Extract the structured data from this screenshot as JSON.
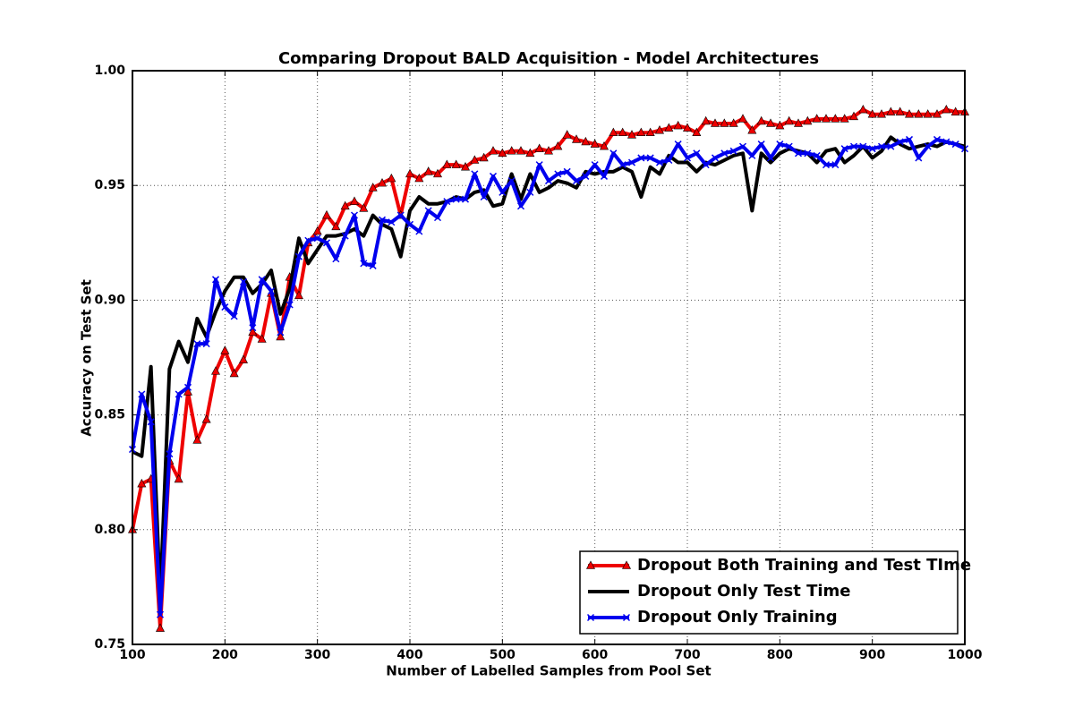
{
  "chart_data": {
    "type": "line",
    "title": "Comparing Dropout BALD Acquisition - Model Architectures",
    "xlabel": "Number of Labelled Samples from Pool Set",
    "ylabel": "Accuracy on Test Set",
    "x": [
      100,
      110,
      120,
      130,
      140,
      150,
      160,
      170,
      180,
      190,
      200,
      210,
      220,
      230,
      240,
      250,
      260,
      270,
      280,
      290,
      300,
      310,
      320,
      330,
      340,
      350,
      360,
      370,
      380,
      390,
      400,
      410,
      420,
      430,
      440,
      450,
      460,
      470,
      480,
      490,
      500,
      510,
      520,
      530,
      540,
      550,
      560,
      570,
      580,
      590,
      600,
      610,
      620,
      630,
      640,
      650,
      660,
      670,
      680,
      690,
      700,
      710,
      720,
      730,
      740,
      750,
      760,
      770,
      780,
      790,
      800,
      810,
      820,
      830,
      840,
      850,
      860,
      870,
      880,
      890,
      900,
      910,
      920,
      930,
      940,
      950,
      960,
      970,
      980,
      990,
      1000
    ],
    "series": [
      {
        "name": "Dropout Both Training and Test TIme",
        "color": "#ee0000",
        "marker": "triangle",
        "values": [
          0.8,
          0.82,
          0.822,
          0.757,
          0.83,
          0.822,
          0.86,
          0.839,
          0.848,
          0.869,
          0.878,
          0.868,
          0.874,
          0.886,
          0.883,
          0.903,
          0.884,
          0.91,
          0.902,
          0.925,
          0.93,
          0.937,
          0.932,
          0.941,
          0.943,
          0.94,
          0.949,
          0.951,
          0.953,
          0.937,
          0.955,
          0.953,
          0.956,
          0.955,
          0.959,
          0.959,
          0.958,
          0.961,
          0.962,
          0.965,
          0.964,
          0.965,
          0.965,
          0.964,
          0.966,
          0.965,
          0.967,
          0.972,
          0.97,
          0.969,
          0.968,
          0.967,
          0.973,
          0.973,
          0.972,
          0.973,
          0.973,
          0.974,
          0.975,
          0.976,
          0.975,
          0.973,
          0.978,
          0.977,
          0.977,
          0.977,
          0.979,
          0.974,
          0.978,
          0.977,
          0.976,
          0.978,
          0.977,
          0.978,
          0.979,
          0.979,
          0.979,
          0.979,
          0.98,
          0.983,
          0.981,
          0.981,
          0.982,
          0.982,
          0.981,
          0.981,
          0.981,
          0.981,
          0.983,
          0.982,
          0.982
        ]
      },
      {
        "name": "Dropout Only Test Time",
        "color": "#000000",
        "values": [
          0.834,
          0.832,
          0.871,
          0.77,
          0.87,
          0.882,
          0.873,
          0.892,
          0.884,
          0.895,
          0.904,
          0.91,
          0.91,
          0.903,
          0.907,
          0.913,
          0.894,
          0.905,
          0.927,
          0.916,
          0.922,
          0.928,
          0.928,
          0.929,
          0.931,
          0.928,
          0.937,
          0.933,
          0.931,
          0.919,
          0.939,
          0.945,
          0.942,
          0.942,
          0.943,
          0.945,
          0.944,
          0.947,
          0.948,
          0.941,
          0.942,
          0.955,
          0.944,
          0.955,
          0.947,
          0.949,
          0.952,
          0.951,
          0.949,
          0.956,
          0.955,
          0.956,
          0.956,
          0.958,
          0.956,
          0.945,
          0.958,
          0.955,
          0.963,
          0.96,
          0.96,
          0.956,
          0.96,
          0.959,
          0.961,
          0.963,
          0.964,
          0.939,
          0.964,
          0.96,
          0.964,
          0.966,
          0.965,
          0.964,
          0.96,
          0.965,
          0.966,
          0.96,
          0.963,
          0.967,
          0.962,
          0.965,
          0.971,
          0.968,
          0.966,
          0.967,
          0.968,
          0.967,
          0.969,
          0.968,
          0.967
        ]
      },
      {
        "name": "Dropout Only Training",
        "color": "#0000ee",
        "marker": "x",
        "values": [
          0.835,
          0.859,
          0.847,
          0.763,
          0.833,
          0.859,
          0.862,
          0.881,
          0.881,
          0.909,
          0.897,
          0.893,
          0.908,
          0.888,
          0.909,
          0.904,
          0.886,
          0.898,
          0.919,
          0.926,
          0.927,
          0.925,
          0.918,
          0.928,
          0.937,
          0.916,
          0.915,
          0.935,
          0.934,
          0.937,
          0.933,
          0.93,
          0.939,
          0.936,
          0.943,
          0.944,
          0.944,
          0.955,
          0.945,
          0.954,
          0.947,
          0.952,
          0.941,
          0.947,
          0.959,
          0.952,
          0.955,
          0.956,
          0.952,
          0.954,
          0.959,
          0.954,
          0.964,
          0.959,
          0.96,
          0.962,
          0.962,
          0.96,
          0.961,
          0.968,
          0.962,
          0.964,
          0.959,
          0.962,
          0.964,
          0.965,
          0.967,
          0.963,
          0.968,
          0.962,
          0.968,
          0.967,
          0.964,
          0.964,
          0.963,
          0.959,
          0.959,
          0.966,
          0.967,
          0.967,
          0.966,
          0.967,
          0.967,
          0.969,
          0.97,
          0.962,
          0.967,
          0.97,
          0.969,
          0.968,
          0.966
        ]
      }
    ],
    "xlim": [
      100,
      1000
    ],
    "xticks": [
      100,
      200,
      300,
      400,
      500,
      600,
      700,
      800,
      900,
      1000
    ],
    "ylim": [
      0.75,
      1.0
    ],
    "yticks": [
      {
        "value": 0.75,
        "label": "0.75"
      },
      {
        "value": 0.8,
        "label": "0.80"
      },
      {
        "value": 0.85,
        "label": "0.85"
      },
      {
        "value": 0.9,
        "label": "0.90"
      },
      {
        "value": 0.95,
        "label": "0.95"
      },
      {
        "value": 1.0,
        "label": "1.00"
      }
    ],
    "grid": true,
    "legend": "lower right"
  }
}
